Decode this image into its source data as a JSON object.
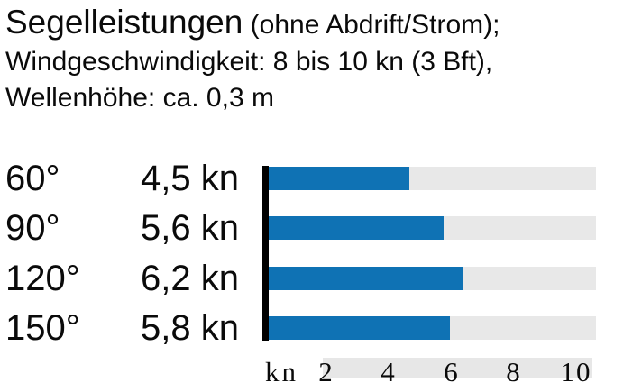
{
  "header": {
    "title": "Segelleistungen",
    "title_suffix": " (ohne Abdrift/Strom);",
    "line2": "Windgeschwindigkeit: 8 bis 10 kn (3 Bft),",
    "line3": "Wellenhöhe: ca. 0,3 m"
  },
  "chart_data": {
    "type": "bar",
    "orientation": "horizontal",
    "title": "Segelleistungen (ohne Abdrift/Strom); Windgeschwindigkeit: 8 bis 10 kn (3 Bft), Wellenhöhe: ca. 0,3 m",
    "categories": [
      "60°",
      "90°",
      "120°",
      "150°"
    ],
    "values": [
      4.5,
      5.6,
      6.2,
      5.8
    ],
    "value_labels": [
      "4,5 kn",
      "5,6 kn",
      "6,2 kn",
      "5,8 kn"
    ],
    "axis": {
      "label": "kn",
      "ticks": [
        2,
        4,
        6,
        8,
        10
      ],
      "range": [
        0,
        10.5
      ],
      "grid": false
    },
    "legend": null,
    "colors": {
      "bar": "#0f72b4",
      "track": "#e8e8e8",
      "tick_band": "#e7e7e7",
      "axis_line": "#000000",
      "text": "#0a0a0a"
    }
  }
}
